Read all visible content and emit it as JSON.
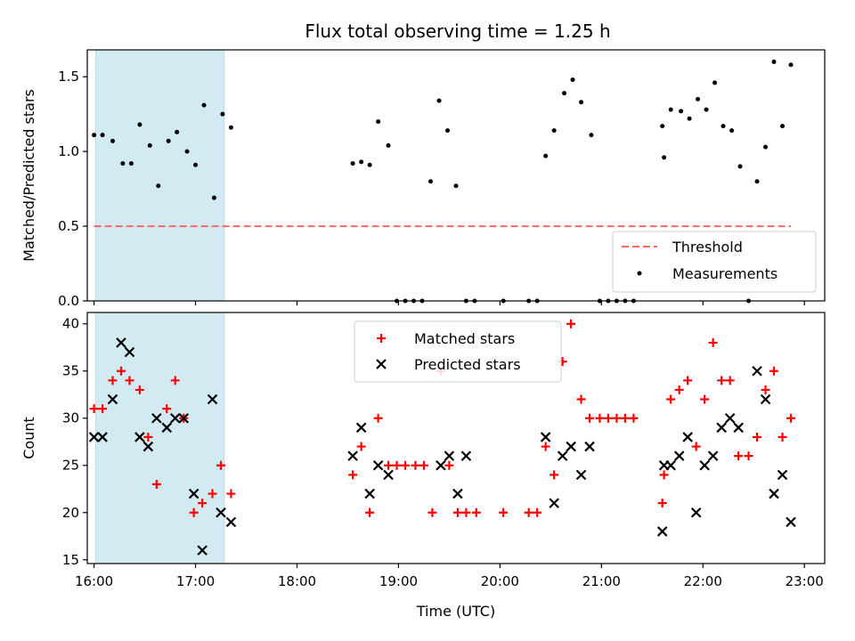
{
  "chart_data": [
    {
      "type": "scatter",
      "title": "Flux total observing time = 1.25 h",
      "xlabel": "",
      "ylabel": "Matched/Predicted stars",
      "xlim": [
        "15:56",
        "23:12"
      ],
      "ylim": [
        0,
        1.68
      ],
      "yticks": [
        "0.0",
        "0.5",
        "1.0",
        "1.5"
      ],
      "yticks_values": [
        0,
        0.5,
        1.0,
        1.5
      ],
      "xticks": [
        "16:00",
        "17:00",
        "18:00",
        "19:00",
        "20:00",
        "21:00",
        "22:00",
        "23:00"
      ],
      "grid": false,
      "legend_placement": "lower-right",
      "highlight_span": {
        "start": "16:01",
        "end": "17:17",
        "color": "#add8e6"
      },
      "threshold": {
        "name": "Threshold",
        "value": 0.5,
        "x_start": "16:00",
        "x_end": "22:52",
        "color": "#ff6666"
      },
      "series": [
        {
          "name": "Measurements",
          "color": "#000000",
          "points": [
            [
              "16:00",
              1.11
            ],
            [
              "16:05",
              1.11
            ],
            [
              "16:11",
              1.07
            ],
            [
              "16:17",
              0.92
            ],
            [
              "16:22",
              0.92
            ],
            [
              "16:27",
              1.18
            ],
            [
              "16:33",
              1.04
            ],
            [
              "16:38",
              0.77
            ],
            [
              "16:44",
              1.07
            ],
            [
              "16:49",
              1.13
            ],
            [
              "16:55",
              1.0
            ],
            [
              "17:00",
              0.91
            ],
            [
              "17:05",
              1.31
            ],
            [
              "17:11",
              0.69
            ],
            [
              "17:16",
              1.25
            ],
            [
              "17:21",
              1.16
            ],
            [
              "18:33",
              0.92
            ],
            [
              "18:38",
              0.93
            ],
            [
              "18:43",
              0.91
            ],
            [
              "18:48",
              1.2
            ],
            [
              "18:54",
              1.04
            ],
            [
              "18:59",
              0.0
            ],
            [
              "19:04",
              0.0
            ],
            [
              "19:09",
              0.0
            ],
            [
              "19:14",
              0.0
            ],
            [
              "19:19",
              0.8
            ],
            [
              "19:24",
              1.34
            ],
            [
              "19:29",
              1.14
            ],
            [
              "19:34",
              0.77
            ],
            [
              "19:40",
              0.0
            ],
            [
              "19:45",
              0.0
            ],
            [
              "20:02",
              0.0
            ],
            [
              "20:17",
              0.0
            ],
            [
              "20:22",
              0.0
            ],
            [
              "20:27",
              0.97
            ],
            [
              "20:32",
              1.14
            ],
            [
              "20:38",
              1.39
            ],
            [
              "20:43",
              1.48
            ],
            [
              "20:48",
              1.33
            ],
            [
              "20:54",
              1.11
            ],
            [
              "20:59",
              0.0
            ],
            [
              "21:04",
              0.0
            ],
            [
              "21:09",
              0.0
            ],
            [
              "21:14",
              0.0
            ],
            [
              "21:19",
              0.0
            ],
            [
              "21:36",
              1.17
            ],
            [
              "21:37",
              0.96
            ],
            [
              "21:41",
              1.28
            ],
            [
              "21:47",
              1.27
            ],
            [
              "21:52",
              1.22
            ],
            [
              "21:57",
              1.35
            ],
            [
              "22:02",
              1.28
            ],
            [
              "22:07",
              1.46
            ],
            [
              "22:12",
              1.17
            ],
            [
              "22:17",
              1.14
            ],
            [
              "22:22",
              0.9
            ],
            [
              "22:27",
              0.0
            ],
            [
              "22:32",
              0.8
            ],
            [
              "22:37",
              1.03
            ],
            [
              "22:42",
              1.6
            ],
            [
              "22:47",
              1.17
            ],
            [
              "22:52",
              1.58
            ]
          ]
        }
      ]
    },
    {
      "type": "scatter",
      "title": "",
      "xlabel": "Time (UTC)",
      "ylabel": "Count",
      "xlim": [
        "15:56",
        "23:12"
      ],
      "ylim": [
        14.6,
        41.2
      ],
      "yticks": [
        "15",
        "20",
        "25",
        "30",
        "35",
        "40"
      ],
      "yticks_values": [
        15,
        20,
        25,
        30,
        35,
        40
      ],
      "xticks": [
        "16:00",
        "17:00",
        "18:00",
        "19:00",
        "20:00",
        "21:00",
        "22:00",
        "23:00"
      ],
      "grid": false,
      "legend_placement": "upper-center",
      "highlight_span": {
        "start": "16:01",
        "end": "17:17",
        "color": "#add8e6"
      },
      "series": [
        {
          "name": "Matched stars",
          "marker": "plus",
          "color": "#ff0000",
          "points": [
            [
              "16:00",
              31
            ],
            [
              "16:05",
              31
            ],
            [
              "16:11",
              34
            ],
            [
              "16:16",
              35
            ],
            [
              "16:21",
              34
            ],
            [
              "16:27",
              33
            ],
            [
              "16:32",
              28
            ],
            [
              "16:37",
              23
            ],
            [
              "16:43",
              31
            ],
            [
              "16:48",
              34
            ],
            [
              "16:53",
              30
            ],
            [
              "16:59",
              20
            ],
            [
              "17:04",
              21
            ],
            [
              "17:10",
              22
            ],
            [
              "17:15",
              25
            ],
            [
              "17:21",
              22
            ],
            [
              "18:33",
              24
            ],
            [
              "18:38",
              27
            ],
            [
              "18:43",
              20
            ],
            [
              "18:48",
              30
            ],
            [
              "18:54",
              25
            ],
            [
              "18:59",
              25
            ],
            [
              "19:04",
              25
            ],
            [
              "19:10",
              25
            ],
            [
              "19:15",
              25
            ],
            [
              "19:20",
              20
            ],
            [
              "19:25",
              35
            ],
            [
              "19:30",
              25
            ],
            [
              "19:35",
              20
            ],
            [
              "19:40",
              20
            ],
            [
              "19:46",
              20
            ],
            [
              "20:02",
              20
            ],
            [
              "20:17",
              20
            ],
            [
              "20:22",
              20
            ],
            [
              "20:27",
              27
            ],
            [
              "20:32",
              24
            ],
            [
              "20:37",
              36
            ],
            [
              "20:42",
              40
            ],
            [
              "20:48",
              32
            ],
            [
              "20:53",
              30
            ],
            [
              "20:59",
              30
            ],
            [
              "21:04",
              30
            ],
            [
              "21:09",
              30
            ],
            [
              "21:14",
              30
            ],
            [
              "21:19",
              30
            ],
            [
              "21:36",
              21
            ],
            [
              "21:37",
              24
            ],
            [
              "21:41",
              32
            ],
            [
              "21:46",
              33
            ],
            [
              "21:51",
              34
            ],
            [
              "21:56",
              27
            ],
            [
              "22:01",
              32
            ],
            [
              "22:06",
              38
            ],
            [
              "22:11",
              34
            ],
            [
              "22:16",
              34
            ],
            [
              "22:21",
              26
            ],
            [
              "22:27",
              26
            ],
            [
              "22:32",
              28
            ],
            [
              "22:37",
              33
            ],
            [
              "22:42",
              35
            ],
            [
              "22:47",
              28
            ],
            [
              "22:52",
              30
            ]
          ]
        },
        {
          "name": "Predicted stars",
          "marker": "x",
          "color": "#000000",
          "points": [
            [
              "16:00",
              28
            ],
            [
              "16:05",
              28
            ],
            [
              "16:11",
              32
            ],
            [
              "16:16",
              38
            ],
            [
              "16:21",
              37
            ],
            [
              "16:27",
              28
            ],
            [
              "16:32",
              27
            ],
            [
              "16:37",
              30
            ],
            [
              "16:43",
              29
            ],
            [
              "16:48",
              30
            ],
            [
              "16:53",
              30
            ],
            [
              "16:59",
              22
            ],
            [
              "17:04",
              16
            ],
            [
              "17:10",
              32
            ],
            [
              "17:15",
              20
            ],
            [
              "17:21",
              19
            ],
            [
              "18:33",
              26
            ],
            [
              "18:38",
              29
            ],
            [
              "18:43",
              22
            ],
            [
              "18:48",
              25
            ],
            [
              "18:54",
              24
            ],
            [
              "19:25",
              25
            ],
            [
              "19:30",
              26
            ],
            [
              "19:35",
              22
            ],
            [
              "19:40",
              26
            ],
            [
              "20:27",
              28
            ],
            [
              "20:32",
              21
            ],
            [
              "20:37",
              26
            ],
            [
              "20:42",
              27
            ],
            [
              "20:48",
              24
            ],
            [
              "20:53",
              27
            ],
            [
              "21:36",
              18
            ],
            [
              "21:37",
              25
            ],
            [
              "21:41",
              25
            ],
            [
              "21:46",
              26
            ],
            [
              "21:51",
              28
            ],
            [
              "21:56",
              20
            ],
            [
              "22:01",
              25
            ],
            [
              "22:06",
              26
            ],
            [
              "22:11",
              29
            ],
            [
              "22:16",
              30
            ],
            [
              "22:21",
              29
            ],
            [
              "22:32",
              35
            ],
            [
              "22:37",
              32
            ],
            [
              "22:42",
              22
            ],
            [
              "22:47",
              24
            ],
            [
              "22:52",
              19
            ]
          ]
        }
      ]
    }
  ]
}
